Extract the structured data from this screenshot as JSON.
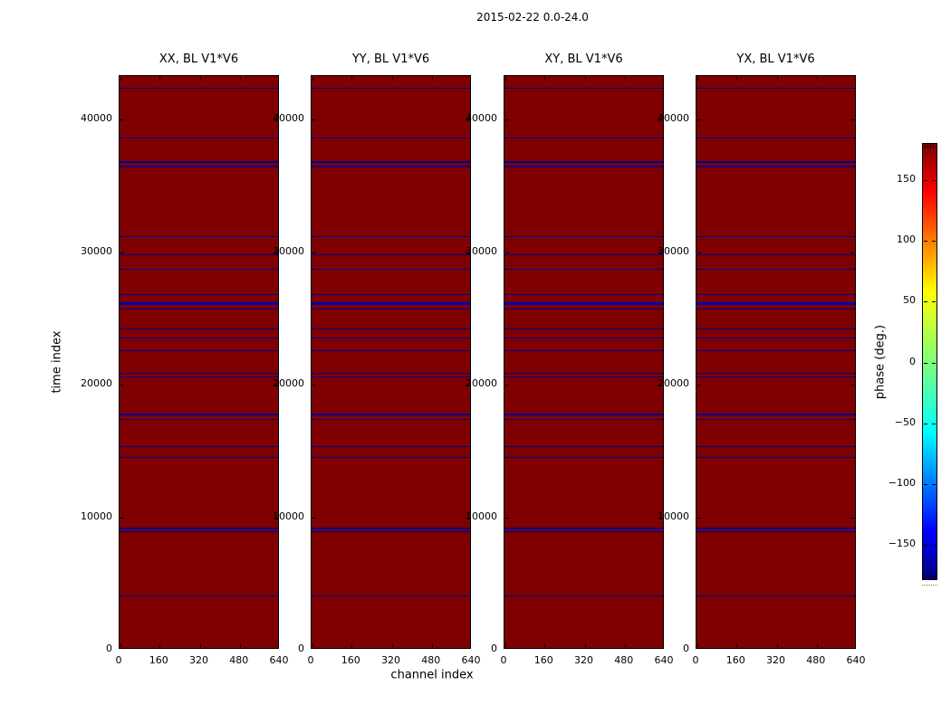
{
  "figure_title": "2015-02-22 0.0-24.0",
  "chart_data": {
    "type": "heatmap",
    "title": "2015-02-22 0.0-24.0",
    "xlabel": "channel index",
    "ylabel": "time index",
    "subplots": [
      {
        "title": "XX, BL V1*V6"
      },
      {
        "title": "YY, BL V1*V6"
      },
      {
        "title": "XY, BL V1*V6"
      },
      {
        "title": "YX, BL V1*V6"
      }
    ],
    "xlim": [
      0,
      640
    ],
    "ylim": [
      0,
      43300
    ],
    "x_ticks": [
      0,
      160,
      320,
      480,
      640
    ],
    "y_ticks": [
      0,
      10000,
      20000,
      30000,
      40000
    ],
    "grid": false,
    "legend": "none",
    "body_color": "#7e0000",
    "flagged_row_color": "#00008b",
    "flagged_rows": [
      {
        "time": 42400,
        "px": 1
      },
      {
        "time": 38600,
        "px": 1
      },
      {
        "time": 36800,
        "px": 2
      },
      {
        "time": 36450,
        "px": 2
      },
      {
        "time": 31200,
        "px": 1
      },
      {
        "time": 29800,
        "px": 1
      },
      {
        "time": 28700,
        "px": 1
      },
      {
        "time": 26800,
        "px": 1
      },
      {
        "time": 26100,
        "px": 3,
        "color": "#0000b4"
      },
      {
        "time": 25700,
        "px": 1
      },
      {
        "time": 24200,
        "px": 1
      },
      {
        "time": 23550,
        "px": 1
      },
      {
        "time": 22600,
        "px": 1
      },
      {
        "time": 20850,
        "px": 1
      },
      {
        "time": 20600,
        "px": 1
      },
      {
        "time": 17750,
        "px": 2
      },
      {
        "time": 17400,
        "px": 1
      },
      {
        "time": 15350,
        "px": 1
      },
      {
        "time": 14500,
        "px": 1
      },
      {
        "time": 9150,
        "px": 2
      },
      {
        "time": 8900,
        "px": 1
      },
      {
        "time": 4050,
        "px": 1
      }
    ],
    "colorbar": {
      "label": "phase (deg.)",
      "range_deg": [
        -180,
        180
      ],
      "tick_values": [
        150,
        100,
        50,
        0,
        -50,
        -100,
        -150
      ],
      "tick_labels": [
        "150",
        "100",
        "50",
        "0",
        "−50",
        "−100",
        "−150"
      ],
      "colormap": "jet",
      "colormap_stops": [
        "#00007f",
        "#0000ff",
        "#00ffff",
        "#7dff7a",
        "#ffff00",
        "#ff0000",
        "#7f0000"
      ]
    }
  }
}
